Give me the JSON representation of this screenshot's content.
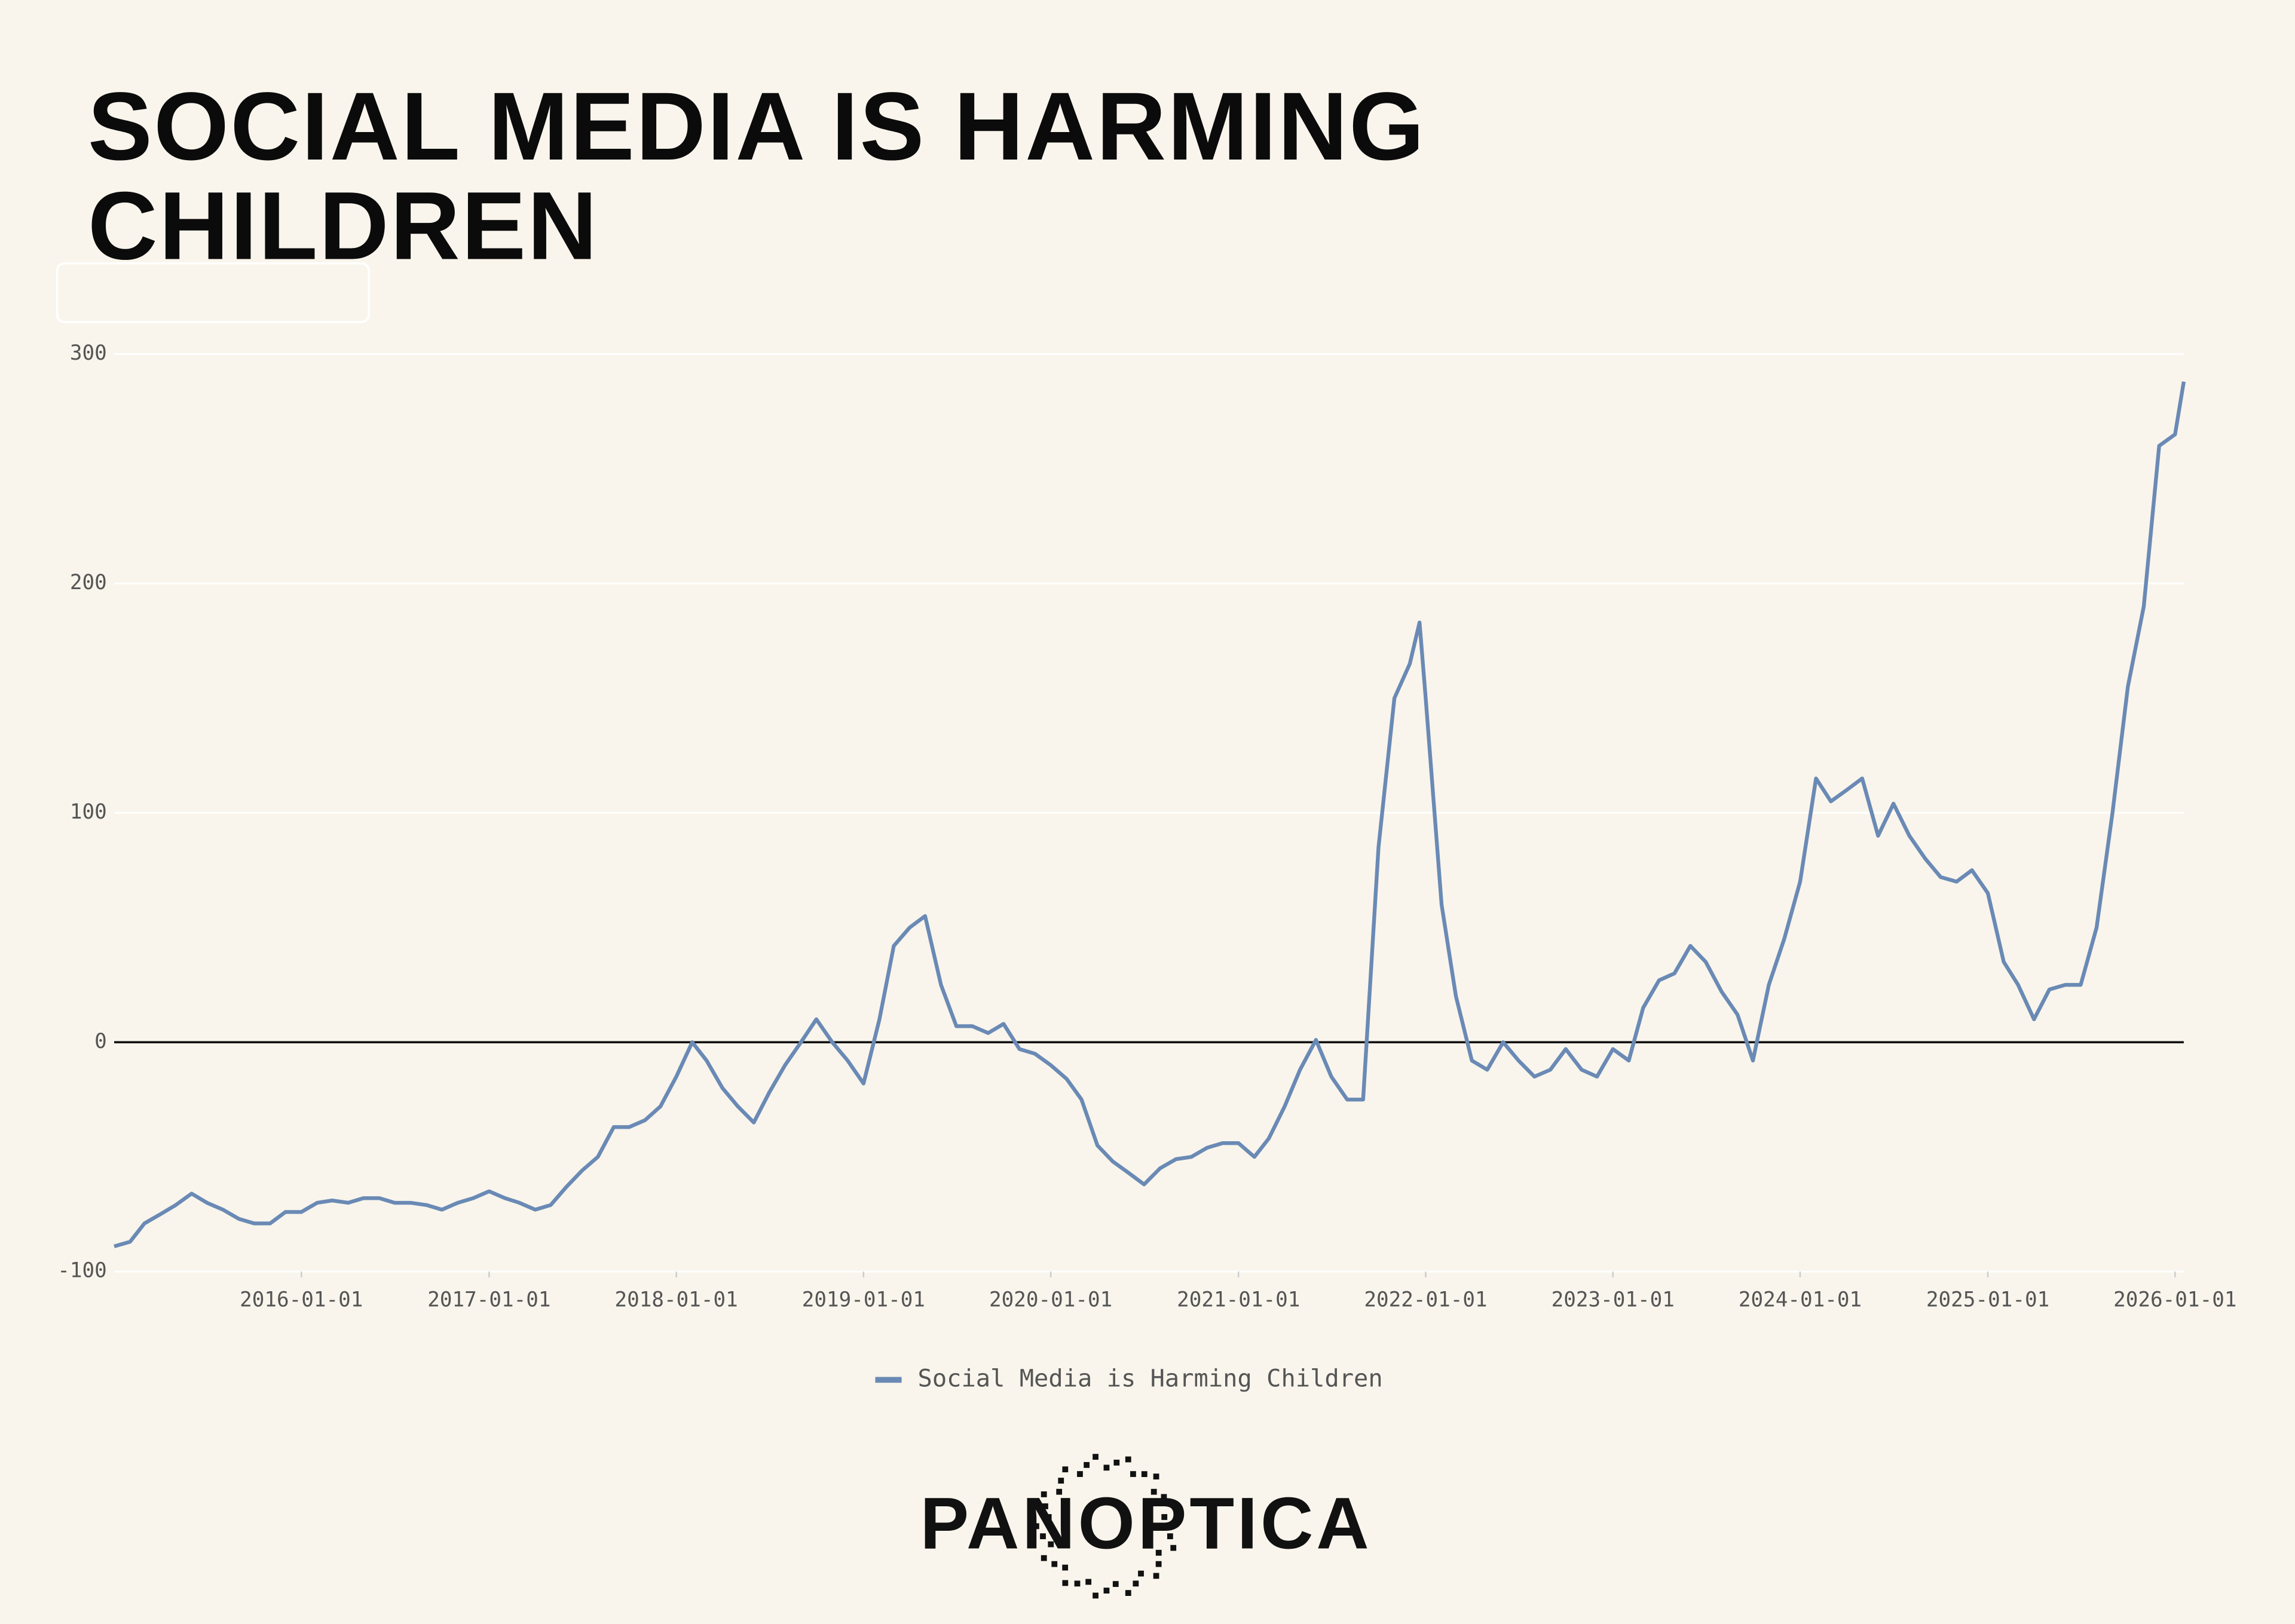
{
  "chart_data": {
    "type": "line",
    "title": "SOCIAL MEDIA IS HARMING CHILDREN",
    "x": [
      "2015-01-01",
      "2015-02-01",
      "2015-03-01",
      "2015-04-01",
      "2015-05-01",
      "2015-06-01",
      "2015-07-01",
      "2015-08-01",
      "2015-09-01",
      "2015-10-01",
      "2015-11-01",
      "2015-12-01",
      "2016-01-01",
      "2016-02-01",
      "2016-03-01",
      "2016-04-01",
      "2016-05-01",
      "2016-06-01",
      "2016-07-01",
      "2016-08-01",
      "2016-09-01",
      "2016-10-01",
      "2016-11-01",
      "2016-12-01",
      "2017-01-01",
      "2017-02-01",
      "2017-03-01",
      "2017-04-01",
      "2017-05-01",
      "2017-06-01",
      "2017-07-01",
      "2017-08-01",
      "2017-09-01",
      "2017-10-01",
      "2017-11-01",
      "2017-12-01",
      "2018-01-01",
      "2018-02-01",
      "2018-03-01",
      "2018-04-01",
      "2018-05-01",
      "2018-06-01",
      "2018-07-01",
      "2018-08-01",
      "2018-09-01",
      "2018-10-01",
      "2018-11-01",
      "2018-12-01",
      "2019-01-01",
      "2019-02-01",
      "2019-03-01",
      "2019-04-01",
      "2019-05-01",
      "2019-06-01",
      "2019-07-01",
      "2019-08-01",
      "2019-09-01",
      "2019-10-01",
      "2019-11-01",
      "2019-12-01",
      "2020-01-01",
      "2020-02-01",
      "2020-03-01",
      "2020-04-01",
      "2020-05-01",
      "2020-06-01",
      "2020-07-01",
      "2020-08-01",
      "2020-09-01",
      "2020-10-01",
      "2020-11-01",
      "2020-12-01",
      "2021-01-01",
      "2021-02-01",
      "2021-03-01",
      "2021-04-01",
      "2021-05-01",
      "2021-06-01",
      "2021-07-01",
      "2021-08-01",
      "2021-09-01",
      "2021-10-01",
      "2021-11-01",
      "2021-12-01",
      "2021-12-20",
      "2022-01-01",
      "2022-02-01",
      "2022-03-01",
      "2022-04-01",
      "2022-05-01",
      "2022-06-01",
      "2022-07-01",
      "2022-08-01",
      "2022-09-01",
      "2022-10-01",
      "2022-11-01",
      "2022-12-01",
      "2023-01-01",
      "2023-02-01",
      "2023-03-01",
      "2023-04-01",
      "2023-05-01",
      "2023-06-01",
      "2023-07-01",
      "2023-08-01",
      "2023-09-01",
      "2023-10-01",
      "2023-11-01",
      "2023-12-01",
      "2024-01-01",
      "2024-02-01",
      "2024-03-01",
      "2024-04-01",
      "2024-05-01",
      "2024-06-01",
      "2024-07-01",
      "2024-08-01",
      "2024-09-01",
      "2024-10-01",
      "2024-11-01",
      "2024-12-01",
      "2025-01-01",
      "2025-02-01",
      "2025-03-01",
      "2025-04-01",
      "2025-05-01",
      "2025-06-01",
      "2025-07-01",
      "2025-08-01",
      "2025-09-01",
      "2025-10-01",
      "2025-11-01",
      "2025-12-01",
      "2026-01-01",
      "2026-01-18"
    ],
    "series": [
      {
        "name": "Social Media is Harming Children",
        "color": "#6a8ab5",
        "values": [
          -89,
          -87,
          -79,
          -75,
          -71,
          -66,
          -70,
          -73,
          -77,
          -79,
          -79,
          -74,
          -74,
          -70,
          -69,
          -70,
          -68,
          -68,
          -70,
          -70,
          -71,
          -73,
          -70,
          -68,
          -65,
          -68,
          -70,
          -73,
          -71,
          -63,
          -56,
          -50,
          -37,
          -37,
          -34,
          -28,
          -15,
          0,
          -8,
          -20,
          -28,
          -35,
          -22,
          -10,
          0,
          10,
          0,
          -8,
          -18,
          10,
          42,
          50,
          55,
          25,
          7,
          7,
          4,
          8,
          -3,
          -5,
          -10,
          -16,
          -25,
          -45,
          -52,
          -57,
          -62,
          -55,
          -51,
          -50,
          -46,
          -44,
          -44,
          -50,
          -42,
          -28,
          -12,
          1,
          -15,
          -25,
          -25,
          85,
          150,
          165,
          183,
          150,
          60,
          20,
          -8,
          -12,
          0,
          -8,
          -15,
          -12,
          -3,
          -12,
          -15,
          -3,
          -8,
          15,
          27,
          30,
          42,
          35,
          22,
          12,
          -8,
          25,
          45,
          70,
          115,
          105,
          110,
          115,
          90,
          104,
          90,
          80,
          72,
          70,
          75,
          65,
          35,
          25,
          10,
          23,
          25,
          25,
          50,
          100,
          155,
          190,
          260,
          265,
          288
        ]
      }
    ],
    "xlim": [
      "2015-01-01",
      "2026-01-18"
    ],
    "xticks": [
      "2016-01-01",
      "2017-01-01",
      "2018-01-01",
      "2019-01-01",
      "2020-01-01",
      "2021-01-01",
      "2022-01-01",
      "2023-01-01",
      "2024-01-01",
      "2025-01-01",
      "2026-01-01"
    ],
    "ylim": [
      -100,
      300
    ],
    "yticks": [
      -100,
      0,
      100,
      200,
      300
    ],
    "grid": true,
    "legend": "bottom",
    "logo": "PANOPTICA"
  }
}
